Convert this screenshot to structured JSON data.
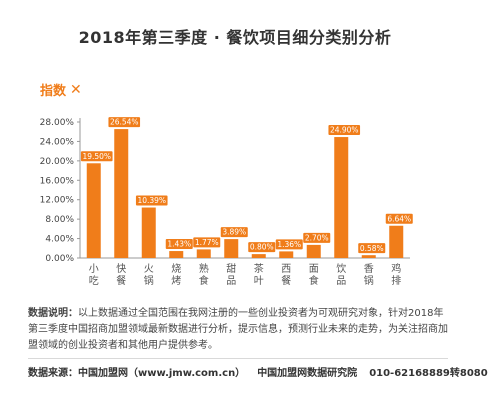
{
  "header": {
    "title": "2018年第三季度 · 餐饮项目细分类别分析"
  },
  "badge": {
    "label": "指数",
    "icon": "close-x-icon"
  },
  "chart_data": {
    "type": "bar",
    "categories": [
      "小吃",
      "快餐",
      "火锅",
      "烧烤",
      "熟食",
      "甜品",
      "茶叶",
      "西餐",
      "面食",
      "饮品",
      "香锅",
      "鸡排"
    ],
    "values": [
      19.5,
      26.54,
      10.39,
      1.43,
      1.77,
      3.89,
      0.8,
      1.36,
      2.7,
      24.9,
      0.58,
      6.64
    ],
    "labels": [
      "19.50%",
      "26.54%",
      "10.39%",
      "1.43%",
      "1.77%",
      "3.89%",
      "0.80%",
      "1.36%",
      "2.70%",
      "24.90%",
      "0.58%",
      "6.64%"
    ],
    "ylim": [
      0,
      28
    ],
    "yticks": [
      "0.00%",
      "4.00%",
      "8.00%",
      "12.00%",
      "16.00%",
      "20.00%",
      "24.00%",
      "28.00%"
    ],
    "bar_color": "#f07d1a",
    "grid": false
  },
  "description": {
    "label": "数据说明：",
    "text": "以上数据通过全国范围在我网注册的一些创业投资者为可观研究对象，针对2018年第三季度中国招商加盟领域最新数据进行分析，提示信息，预测行业未来的走势，为关注招商加盟领域的创业投资者和其他用户提供参考。"
  },
  "footer": {
    "source": "数据来源：中国加盟网（www.jmw.com.cn）",
    "institute": "中国加盟网数据研究院",
    "phone": "010-62168889转8080"
  }
}
